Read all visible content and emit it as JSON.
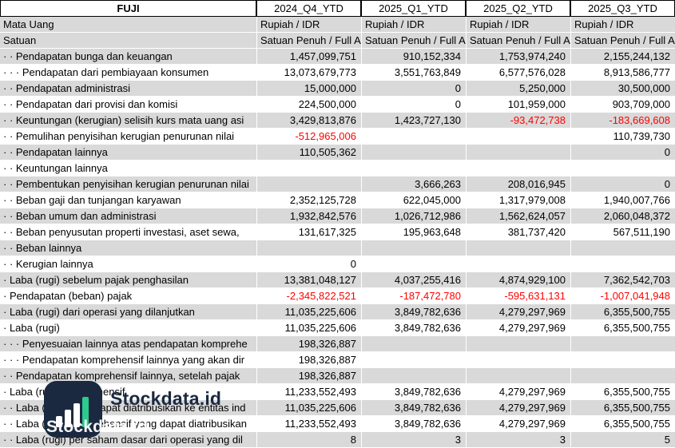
{
  "chart_data": {
    "type": "table",
    "title": "FUJI",
    "columns": [
      "2024_Q4_YTD",
      "2025_Q1_YTD",
      "2025_Q2_YTD",
      "2025_Q3_YTD"
    ],
    "meta_rows": [
      {
        "label": "Mata Uang",
        "values": [
          "Rupiah / IDR",
          "Rupiah / IDR",
          "Rupiah / IDR",
          "Rupiah / IDR"
        ]
      },
      {
        "label": "Satuan",
        "values": [
          "Satuan Penuh / Full A",
          "Satuan Penuh / Full A",
          "Satuan Penuh / Full A",
          "Satuan Penuh / Full A"
        ]
      }
    ],
    "rows": [
      {
        "label": "· · Pendapatan bunga dan keuangan",
        "values": [
          "1,457,099,751",
          "910,152,334",
          "1,753,974,240",
          "2,155,244,132"
        ]
      },
      {
        "label": "· · · Pendapatan dari pembiayaan konsumen",
        "values": [
          "13,073,679,773",
          "3,551,763,849",
          "6,577,576,028",
          "8,913,586,777"
        ]
      },
      {
        "label": "· · Pendapatan administrasi",
        "values": [
          "15,000,000",
          "0",
          "5,250,000",
          "30,500,000"
        ]
      },
      {
        "label": "· · Pendapatan dari provisi dan komisi",
        "values": [
          "224,500,000",
          "0",
          "101,959,000",
          "903,709,000"
        ]
      },
      {
        "label": "· · Keuntungan (kerugian) selisih kurs mata uang asi",
        "values": [
          "3,429,813,876",
          "1,423,727,130",
          "-93,472,738",
          "-183,669,608"
        ]
      },
      {
        "label": "· · Pemulihan penyisihan kerugian penurunan nilai",
        "values": [
          "-512,965,006",
          "",
          "",
          "110,739,730"
        ]
      },
      {
        "label": "· · Pendapatan lainnya",
        "values": [
          "110,505,362",
          "",
          "",
          "0"
        ]
      },
      {
        "label": "· · Keuntungan lainnya",
        "values": [
          "",
          "",
          "",
          ""
        ]
      },
      {
        "label": "· · Pembentukan penyisihan kerugian penurunan nilai",
        "values": [
          "",
          "3,666,263",
          "208,016,945",
          "0"
        ]
      },
      {
        "label": "· · Beban gaji dan tunjangan karyawan",
        "values": [
          "2,352,125,728",
          "622,045,000",
          "1,317,979,008",
          "1,940,007,766"
        ]
      },
      {
        "label": "· · Beban umum dan administrasi",
        "values": [
          "1,932,842,576",
          "1,026,712,986",
          "1,562,624,057",
          "2,060,048,372"
        ]
      },
      {
        "label": "· · Beban penyusutan properti investasi, aset sewa,",
        "values": [
          "131,617,325",
          "195,963,648",
          "381,737,420",
          "567,511,190"
        ]
      },
      {
        "label": "· · Beban lainnya",
        "values": [
          "",
          "",
          "",
          ""
        ]
      },
      {
        "label": "· · Kerugian lainnya",
        "values": [
          "0",
          "",
          "",
          ""
        ]
      },
      {
        "label": "· Laba (rugi) sebelum pajak penghasilan",
        "values": [
          "13,381,048,127",
          "4,037,255,416",
          "4,874,929,100",
          "7,362,542,703"
        ]
      },
      {
        "label": "· Pendapatan (beban) pajak",
        "values": [
          "-2,345,822,521",
          "-187,472,780",
          "-595,631,131",
          "-1,007,041,948"
        ]
      },
      {
        "label": "· Laba (rugi) dari operasi yang dilanjutkan",
        "values": [
          "11,035,225,606",
          "3,849,782,636",
          "4,279,297,969",
          "6,355,500,755"
        ]
      },
      {
        "label": "· Laba (rugi)",
        "values": [
          "11,035,225,606",
          "3,849,782,636",
          "4,279,297,969",
          "6,355,500,755"
        ]
      },
      {
        "label": "· · · Penyesuaian lainnya atas pendapatan komprehe",
        "values": [
          "198,326,887",
          "",
          "",
          ""
        ]
      },
      {
        "label": "· · · Pendapatan komprehensif lainnya yang akan dir",
        "values": [
          "198,326,887",
          "",
          "",
          ""
        ]
      },
      {
        "label": "· · Pendapatan komprehensif lainnya, setelah pajak",
        "values": [
          "198,326,887",
          "",
          "",
          ""
        ]
      },
      {
        "label": "· Laba (rugi) komprehensif",
        "values": [
          "11,233,552,493",
          "3,849,782,636",
          "4,279,297,969",
          "6,355,500,755"
        ]
      },
      {
        "label": "· · Laba (rugi) yang dapat diatribusikan ke entitas ind",
        "values": [
          "11,035,225,606",
          "3,849,782,636",
          "4,279,297,969",
          "6,355,500,755"
        ]
      },
      {
        "label": "· · Laba (rugi) komprehensif yang dapat diatribusikan",
        "values": [
          "11,233,552,493",
          "3,849,782,636",
          "4,279,297,969",
          "6,355,500,755"
        ]
      },
      {
        "label": "· · Laba (rugi) per saham dasar dari operasi yang dil",
        "values": [
          "8",
          "3",
          "3",
          "5"
        ]
      }
    ]
  },
  "watermark": {
    "brand_text": "Stockdata.id",
    "overlay_text": "Stockdata.id",
    "logo_icon": "bar-chart-icon"
  },
  "colors": {
    "row_alt_bg": "#d9d9d9",
    "row_bg": "#ffffff",
    "negative": "#ff0000",
    "watermark_navy": "#1a2940",
    "watermark_green": "#2dc98d"
  }
}
